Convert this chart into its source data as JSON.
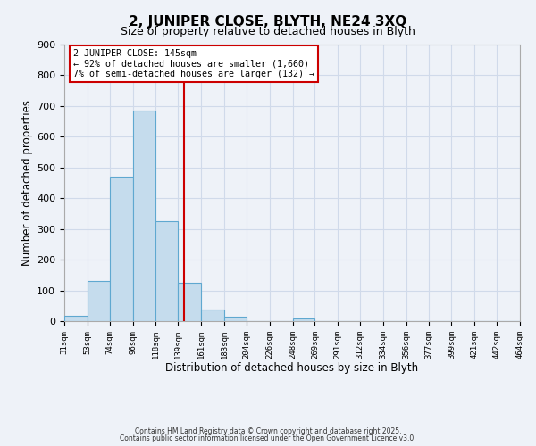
{
  "title": "2, JUNIPER CLOSE, BLYTH, NE24 3XQ",
  "subtitle": "Size of property relative to detached houses in Blyth",
  "xlabel": "Distribution of detached houses by size in Blyth",
  "ylabel": "Number of detached properties",
  "bar_edges": [
    31,
    53,
    74,
    96,
    118,
    139,
    161,
    183,
    204,
    226,
    248,
    269,
    291,
    312,
    334,
    356,
    377,
    399,
    421,
    442,
    464
  ],
  "bar_heights": [
    18,
    130,
    470,
    685,
    325,
    125,
    38,
    15,
    0,
    0,
    8,
    0,
    0,
    0,
    0,
    0,
    0,
    0,
    0,
    0
  ],
  "bar_color": "#c5dced",
  "bar_edge_color": "#5fa8d0",
  "vline_x": 145,
  "vline_color": "#cc0000",
  "ylim": [
    0,
    900
  ],
  "yticks": [
    0,
    100,
    200,
    300,
    400,
    500,
    600,
    700,
    800,
    900
  ],
  "xtick_labels": [
    "31sqm",
    "53sqm",
    "74sqm",
    "96sqm",
    "118sqm",
    "139sqm",
    "161sqm",
    "183sqm",
    "204sqm",
    "226sqm",
    "248sqm",
    "269sqm",
    "291sqm",
    "312sqm",
    "334sqm",
    "356sqm",
    "377sqm",
    "399sqm",
    "421sqm",
    "442sqm",
    "464sqm"
  ],
  "annotation_line1": "2 JUNIPER CLOSE: 145sqm",
  "annotation_line2": "← 92% of detached houses are smaller (1,660)",
  "annotation_line3": "7% of semi-detached houses are larger (132) →",
  "grid_color": "#d0daea",
  "background_color": "#eef2f8",
  "footer1": "Contains HM Land Registry data © Crown copyright and database right 2025.",
  "footer2": "Contains public sector information licensed under the Open Government Licence v3.0."
}
